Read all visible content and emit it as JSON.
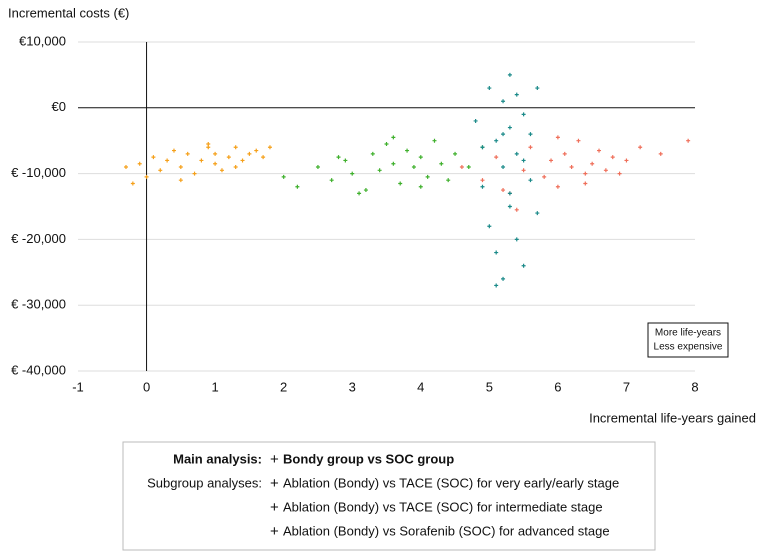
{
  "chart_data": {
    "type": "scatter",
    "y_label": "Incremental costs (€)",
    "x_label": "Incremental life-years gained",
    "annotation": [
      "More life-years",
      "Less expensive"
    ],
    "legend_headings": [
      "Main analysis:",
      "Subgroup analyses:"
    ],
    "xlim": [
      -1,
      8
    ],
    "xticks": [
      -1,
      0,
      1,
      2,
      3,
      4,
      5,
      6,
      7,
      8
    ],
    "ylim": [
      -40000,
      10000
    ],
    "yticks": [
      {
        "value": -40000,
        "label": "€ -40,000"
      },
      {
        "value": -30000,
        "label": "€ -30,000"
      },
      {
        "value": -20000,
        "label": "€ -20,000"
      },
      {
        "value": -10000,
        "label": "€ -10,000"
      },
      {
        "value": 0,
        "label": "€0"
      },
      {
        "value": 10000,
        "label": "€10,000"
      }
    ],
    "grid": true,
    "series": [
      {
        "name": "Bondy group vs SOC group",
        "color": "#f5a01a",
        "x": [
          -0.3,
          -0.1,
          0.0,
          0.1,
          0.2,
          0.3,
          0.4,
          0.5,
          0.6,
          0.7,
          0.8,
          0.9,
          1.0,
          1.0,
          1.1,
          1.2,
          1.3,
          1.4,
          1.5,
          1.6,
          1.7,
          1.8,
          0.5,
          0.9,
          1.3,
          -0.2
        ],
        "values": [
          -9000,
          -8500,
          -10500,
          -7500,
          -9500,
          -8000,
          -6500,
          -9000,
          -7000,
          -10000,
          -8000,
          -6000,
          -8500,
          -7000,
          -9500,
          -7500,
          -6000,
          -8000,
          -7000,
          -6500,
          -7500,
          -6000,
          -11000,
          -5500,
          -9000,
          -11500
        ]
      },
      {
        "name": "Ablation (Bondy) vs TACE (SOC) for very early/early stage",
        "color": "#ef6f5a",
        "x": [
          4.6,
          4.9,
          5.1,
          5.3,
          5.5,
          5.6,
          5.8,
          5.9,
          6.0,
          6.1,
          6.2,
          6.3,
          6.4,
          6.5,
          6.6,
          6.7,
          6.8,
          7.0,
          7.2,
          7.5,
          7.9,
          5.4,
          6.0,
          6.4,
          5.2,
          6.9
        ],
        "values": [
          -9000,
          -11000,
          -7500,
          -13000,
          -9500,
          -6000,
          -10500,
          -8000,
          -12000,
          -7000,
          -9000,
          -5000,
          -10000,
          -8500,
          -6500,
          -9500,
          -7500,
          -8000,
          -6000,
          -7000,
          -5000,
          -15500,
          -4500,
          -11500,
          -12500,
          -10000
        ]
      },
      {
        "name": "Ablation (Bondy) vs TACE (SOC) for intermediate stage",
        "color": "#3fb02c",
        "x": [
          2.0,
          2.2,
          2.5,
          2.7,
          2.9,
          3.0,
          3.1,
          3.3,
          3.4,
          3.5,
          3.6,
          3.7,
          3.8,
          3.9,
          4.0,
          4.1,
          4.2,
          4.3,
          4.5,
          4.7,
          4.9,
          3.2,
          3.6,
          4.0,
          2.8,
          4.4
        ],
        "values": [
          -10500,
          -12000,
          -9000,
          -11000,
          -8000,
          -10000,
          -13000,
          -7000,
          -9500,
          -5500,
          -8500,
          -11500,
          -6500,
          -9000,
          -7500,
          -10500,
          -5000,
          -8500,
          -7000,
          -9000,
          -6000,
          -12500,
          -4500,
          -12000,
          -7500,
          -11000
        ]
      },
      {
        "name": "Ablation (Bondy) vs Sorafenib (SOC) for advanced stage",
        "color": "#1b8a89",
        "x": [
          4.8,
          4.9,
          5.0,
          5.0,
          5.1,
          5.1,
          5.2,
          5.2,
          5.2,
          5.3,
          5.3,
          5.3,
          5.4,
          5.4,
          5.5,
          5.5,
          5.6,
          5.6,
          5.7,
          5.7,
          4.9,
          5.1,
          5.3,
          5.5,
          5.2,
          5.4
        ],
        "values": [
          -2000,
          -12000,
          3000,
          -18000,
          -5000,
          -22000,
          1000,
          -9000,
          -26000,
          -3000,
          -15000,
          5000,
          -7000,
          -20000,
          -1000,
          -24000,
          -4000,
          -11000,
          3000,
          -16000,
          -6000,
          -27000,
          -13000,
          -8000,
          -4000,
          2000
        ]
      }
    ]
  }
}
